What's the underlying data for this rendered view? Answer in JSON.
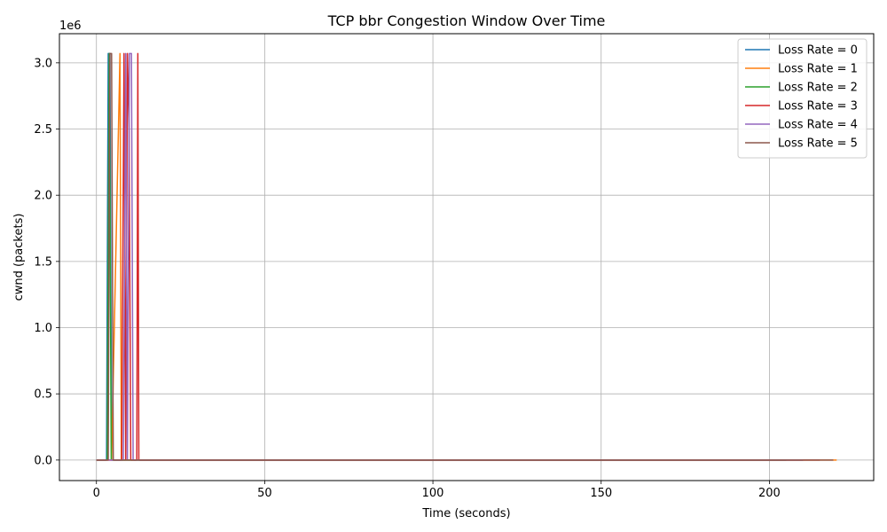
{
  "chart_data": {
    "type": "line",
    "title": "TCP bbr Congestion Window Over Time",
    "xlabel": "Time (seconds)",
    "ylabel": "cwnd (packets)",
    "y_offset_label": "1e6",
    "xlim": [
      -11,
      231
    ],
    "ylim": [
      -0.155,
      3.22
    ],
    "xticks": [
      0,
      50,
      100,
      150,
      200
    ],
    "xtick_labels": [
      "0",
      "50",
      "100",
      "150",
      "200"
    ],
    "yticks": [
      0.0,
      0.5,
      1.0,
      1.5,
      2.0,
      2.5,
      3.0
    ],
    "ytick_labels": [
      "0.0",
      "0.5",
      "1.0",
      "1.5",
      "2.0",
      "2.5",
      "3.0"
    ],
    "grid": true,
    "legend_position": "top-right",
    "series": [
      {
        "name": "Loss Rate = 0",
        "color": "#1f77b4",
        "x": [
          0,
          3.0,
          3.5,
          4.0,
          4.5,
          210
        ],
        "y": [
          0.0,
          0.0,
          3.07,
          3.07,
          0.0,
          0.0
        ]
      },
      {
        "name": "Loss Rate = 1",
        "color": "#ff7f0e",
        "x": [
          0,
          4.5,
          7.0,
          7.4,
          220
        ],
        "y": [
          0.0,
          0.0,
          3.07,
          0.0,
          0.0
        ]
      },
      {
        "name": "Loss Rate = 2",
        "color": "#2ca02c",
        "x": [
          0,
          3.2,
          3.8,
          4.4,
          205
        ],
        "y": [
          0.0,
          0.0,
          3.07,
          0.0,
          0.0
        ]
      },
      {
        "name": "Loss Rate = 3",
        "color": "#d62728",
        "x": [
          0,
          7.5,
          8.2,
          8.7,
          9.2,
          9.7,
          10.2,
          12.0,
          12.3,
          12.6,
          215
        ],
        "y": [
          0.0,
          0.0,
          3.07,
          0.0,
          3.07,
          2.5,
          0.0,
          0.0,
          3.07,
          0.0,
          0.0
        ]
      },
      {
        "name": "Loss Rate = 4",
        "color": "#9467bd",
        "x": [
          0,
          8.0,
          8.7,
          9.2,
          9.8,
          10.4,
          10.9,
          210
        ],
        "y": [
          0.0,
          0.0,
          3.07,
          0.0,
          3.07,
          3.07,
          0.0,
          0.0
        ]
      },
      {
        "name": "Loss Rate = 5",
        "color": "#8c564b",
        "x": [
          0,
          3.5,
          4.0,
          4.5,
          5.0,
          219
        ],
        "y": [
          0.0,
          0.0,
          3.07,
          3.07,
          0.0,
          0.0
        ]
      }
    ]
  }
}
